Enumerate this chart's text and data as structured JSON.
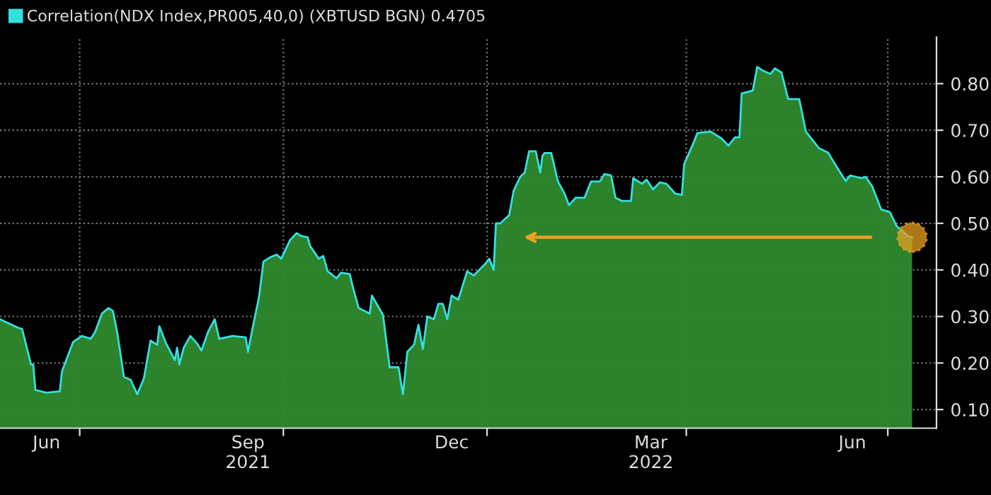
{
  "chart_data": {
    "type": "area",
    "x": [
      "2021-05-26",
      "2021-06-03",
      "2021-06-05",
      "2021-06-09",
      "2021-06-10",
      "2021-06-11",
      "2021-06-16",
      "2021-06-22",
      "2021-06-23",
      "2021-06-28",
      "2021-07-02",
      "2021-07-06",
      "2021-07-08",
      "2021-07-11",
      "2021-07-14",
      "2021-07-16",
      "2021-07-18",
      "2021-07-21",
      "2021-07-24",
      "2021-07-27",
      "2021-07-30",
      "2021-08-02",
      "2021-08-05",
      "2021-08-06",
      "2021-08-09",
      "2021-08-13",
      "2021-08-14",
      "2021-08-15",
      "2021-08-17",
      "2021-08-20",
      "2021-08-23",
      "2021-08-25",
      "2021-08-28",
      "2021-08-31",
      "2021-09-02",
      "2021-09-08",
      "2021-09-14",
      "2021-09-15",
      "2021-09-17",
      "2021-09-20",
      "2021-09-22",
      "2021-09-25",
      "2021-09-28",
      "2021-09-30",
      "2021-10-04",
      "2021-10-07",
      "2021-10-09",
      "2021-10-12",
      "2021-10-13",
      "2021-10-17",
      "2021-10-19",
      "2021-10-21",
      "2021-10-25",
      "2021-10-27",
      "2021-10-31",
      "2021-11-01",
      "2021-11-04",
      "2021-11-09",
      "2021-11-10",
      "2021-11-15",
      "2021-11-18",
      "2021-11-22",
      "2021-11-24",
      "2021-11-26",
      "2021-11-29",
      "2021-12-01",
      "2021-12-03",
      "2021-12-05",
      "2021-12-08",
      "2021-12-10",
      "2021-12-12",
      "2021-12-14",
      "2021-12-16",
      "2021-12-19",
      "2021-12-23",
      "2021-12-26",
      "2021-12-31",
      "2022-01-02",
      "2022-01-04",
      "2022-01-05",
      "2022-01-07",
      "2022-01-11",
      "2022-01-13",
      "2022-01-16",
      "2022-01-18",
      "2022-01-20",
      "2022-01-23",
      "2022-01-25",
      "2022-01-26",
      "2022-01-27",
      "2022-01-30",
      "2022-02-02",
      "2022-02-05",
      "2022-02-07",
      "2022-02-10",
      "2022-02-14",
      "2022-02-17",
      "2022-02-21",
      "2022-02-23",
      "2022-02-26",
      "2022-02-28",
      "2022-03-03",
      "2022-03-07",
      "2022-03-08",
      "2022-03-12",
      "2022-03-14",
      "2022-03-17",
      "2022-03-20",
      "2022-03-23",
      "2022-03-27",
      "2022-03-30",
      "2022-03-31",
      "2022-04-04",
      "2022-04-06",
      "2022-04-12",
      "2022-04-17",
      "2022-04-20",
      "2022-04-23",
      "2022-04-25",
      "2022-04-26",
      "2022-05-01",
      "2022-05-03",
      "2022-05-06",
      "2022-05-09",
      "2022-05-11",
      "2022-05-14",
      "2022-05-17",
      "2022-05-22",
      "2022-05-25",
      "2022-05-30",
      "2022-05-31",
      "2022-06-04",
      "2022-06-08",
      "2022-06-12",
      "2022-06-14",
      "2022-06-19",
      "2022-06-21",
      "2022-06-24",
      "2022-06-28",
      "2022-07-02",
      "2022-07-05",
      "2022-07-10",
      "2022-07-12"
    ],
    "series": [
      {
        "name": "Correlation(NDX Index,PR005,40,0) (XBTUSD BGN) 0.4705",
        "color": "#33e0e0",
        "values": [
          0.294,
          0.276,
          0.273,
          0.197,
          0.197,
          0.142,
          0.136,
          0.139,
          0.182,
          0.245,
          0.258,
          0.252,
          0.267,
          0.306,
          0.318,
          0.312,
          0.264,
          0.17,
          0.164,
          0.133,
          0.167,
          0.248,
          0.239,
          0.279,
          0.242,
          0.206,
          0.233,
          0.197,
          0.233,
          0.258,
          0.242,
          0.227,
          0.267,
          0.294,
          0.252,
          0.258,
          0.255,
          0.224,
          0.273,
          0.342,
          0.418,
          0.427,
          0.433,
          0.424,
          0.464,
          0.479,
          0.473,
          0.47,
          0.452,
          0.424,
          0.43,
          0.397,
          0.382,
          0.394,
          0.391,
          0.37,
          0.318,
          0.306,
          0.345,
          0.303,
          0.191,
          0.191,
          0.133,
          0.224,
          0.239,
          0.282,
          0.23,
          0.3,
          0.294,
          0.327,
          0.327,
          0.294,
          0.345,
          0.336,
          0.397,
          0.388,
          0.412,
          0.424,
          0.4,
          0.5,
          0.5,
          0.518,
          0.57,
          0.6,
          0.609,
          0.655,
          0.655,
          0.609,
          0.645,
          0.651,
          0.651,
          0.59,
          0.564,
          0.539,
          0.555,
          0.555,
          0.59,
          0.59,
          0.606,
          0.603,
          0.555,
          0.548,
          0.548,
          0.597,
          0.585,
          0.594,
          0.573,
          0.588,
          0.585,
          0.564,
          0.561,
          0.627,
          0.67,
          0.694,
          0.697,
          0.682,
          0.667,
          0.685,
          0.685,
          0.779,
          0.785,
          0.836,
          0.827,
          0.821,
          0.833,
          0.824,
          0.767,
          0.767,
          0.697,
          0.667,
          0.661,
          0.652,
          0.621,
          0.591,
          0.603,
          0.597,
          0.6,
          0.579,
          0.53,
          0.524,
          0.494,
          0.473,
          0.47
        ]
      },
      {
        "type": "scatter",
        "color": "#e8a020",
        "x": [
          "2022-07-12"
        ],
        "values": [
          0.47
        ]
      }
    ],
    "xlim": [
      "2021-05-26",
      "2022-07-23"
    ],
    "xticks": [
      {
        "value": "2021-07-01",
        "label": null
      },
      {
        "value": "2021-10-01",
        "label": null
      },
      {
        "value": "2022-01-01",
        "label": null
      },
      {
        "value": "2022-04-01",
        "label": null
      },
      {
        "value": "2022-07-01",
        "label": null
      },
      {
        "value": "2021-06-16",
        "label": "Jun"
      },
      {
        "value": "2021-09-15",
        "label": "Sep\n2021"
      },
      {
        "value": "2021-12-16",
        "label": "Dec"
      },
      {
        "value": "2022-03-16",
        "label": "Mar\n2022"
      },
      {
        "value": "2022-06-15",
        "label": "Jun"
      }
    ],
    "ylim": [
      0.06,
      0.9
    ],
    "yticks": [
      {
        "value": 0.1,
        "label": "0.10"
      },
      {
        "value": 0.2,
        "label": "0.20"
      },
      {
        "value": 0.3,
        "label": "0.30"
      },
      {
        "value": 0.4,
        "label": "0.40"
      },
      {
        "value": 0.5,
        "label": "0.50"
      },
      {
        "value": 0.6,
        "label": "0.60"
      },
      {
        "value": 0.7,
        "label": "0.70"
      },
      {
        "value": 0.8,
        "label": "0.80"
      }
    ],
    "grid": true,
    "legend": "top left"
  }
}
